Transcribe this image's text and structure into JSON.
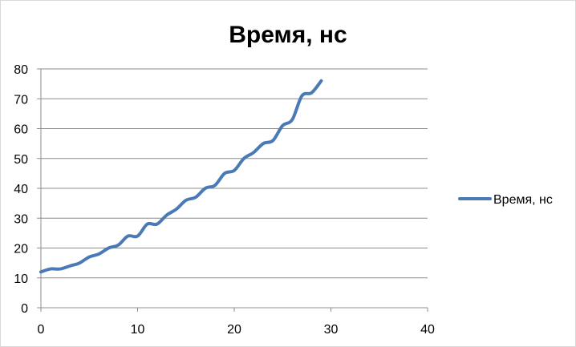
{
  "chart_data": {
    "type": "line",
    "title": "Время, нс",
    "xlabel": "",
    "ylabel": "",
    "xlim": [
      0,
      40
    ],
    "ylim": [
      0,
      80
    ],
    "x_ticks": [
      0,
      10,
      20,
      30,
      40
    ],
    "y_ticks": [
      0,
      10,
      20,
      30,
      40,
      50,
      60,
      70,
      80
    ],
    "grid": "horizontal",
    "legend_position": "right",
    "series": [
      {
        "name": "Время, нс",
        "color": "#4a7ab6",
        "x": [
          0,
          1,
          2,
          3,
          4,
          5,
          6,
          7,
          8,
          9,
          10,
          11,
          12,
          13,
          14,
          15,
          16,
          17,
          18,
          19,
          20,
          21,
          22,
          23,
          24,
          25,
          26,
          27,
          28,
          29
        ],
        "values": [
          12,
          13,
          13,
          14,
          15,
          17,
          18,
          20,
          21,
          24,
          24,
          28,
          28,
          31,
          33,
          36,
          37,
          40,
          41,
          45,
          46,
          50,
          52,
          55,
          56,
          61,
          63,
          71,
          72,
          76
        ]
      }
    ]
  }
}
